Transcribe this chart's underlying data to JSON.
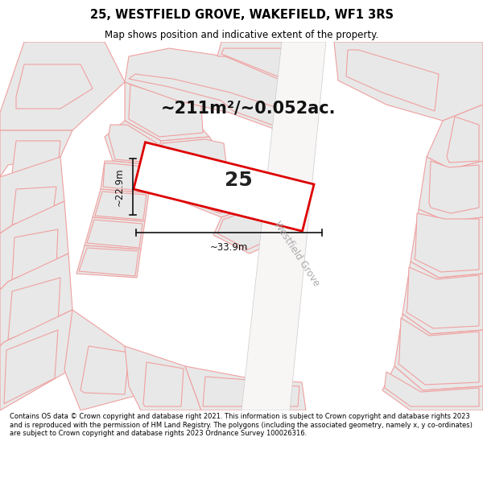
{
  "title_line1": "25, WESTFIELD GROVE, WAKEFIELD, WF1 3RS",
  "title_line2": "Map shows position and indicative extent of the property.",
  "area_text": "~211m²/~0.052ac.",
  "plot_number": "25",
  "dim_width": "~33.9m",
  "dim_height": "~22.9m",
  "street_name": "Westfield Grove",
  "footer": "Contains OS data © Crown copyright and database right 2021. This information is subject to Crown copyright and database rights 2023 and is reproduced with the permission of HM Land Registry. The polygons (including the associated geometry, namely x, y co-ordinates) are subject to Crown copyright and database rights 2023 Ordnance Survey 100026316.",
  "bg_color": "#ffffff",
  "plot_outline_color": "#f0a0a0",
  "plot_fill_color": "#e8e8e8",
  "highlight_color": "#dd0000",
  "highlight_fill": "#ffffff",
  "road_fill": "#ffffff",
  "road_outline": "#aaaaaa",
  "title_color": "#ffffff",
  "footer_color": "#ffffff",
  "dim_color": "#111111",
  "area_text_color": "#111111",
  "street_text_color": "#aaaaaa"
}
